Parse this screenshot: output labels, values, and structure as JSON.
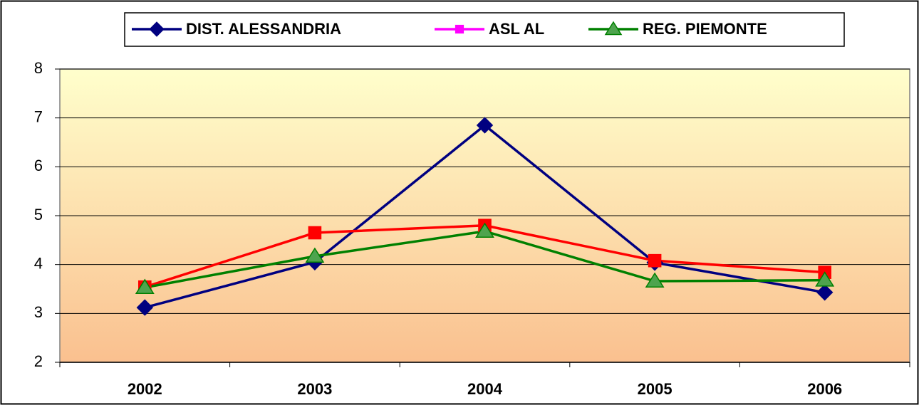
{
  "chart_data": {
    "type": "line",
    "categories": [
      "2002",
      "2003",
      "2004",
      "2005",
      "2006"
    ],
    "series": [
      {
        "name": "DIST. ALESSANDRIA",
        "color": "#000080",
        "marker": "diamond",
        "values": [
          3.12,
          4.05,
          6.85,
          4.04,
          3.43
        ]
      },
      {
        "name": "ASL AL",
        "color": "#ff0000",
        "legend_color": "#ff00ff",
        "marker": "square",
        "values": [
          3.54,
          4.65,
          4.8,
          4.08,
          3.84
        ]
      },
      {
        "name": "REG. PIEMONTE",
        "color": "#008000",
        "marker": "triangle",
        "values": [
          3.53,
          4.17,
          4.68,
          3.66,
          3.68
        ]
      }
    ],
    "ylim": [
      2,
      8
    ],
    "yticks": [
      2,
      3,
      4,
      5,
      6,
      7,
      8
    ],
    "grid": true,
    "legend": "top"
  }
}
